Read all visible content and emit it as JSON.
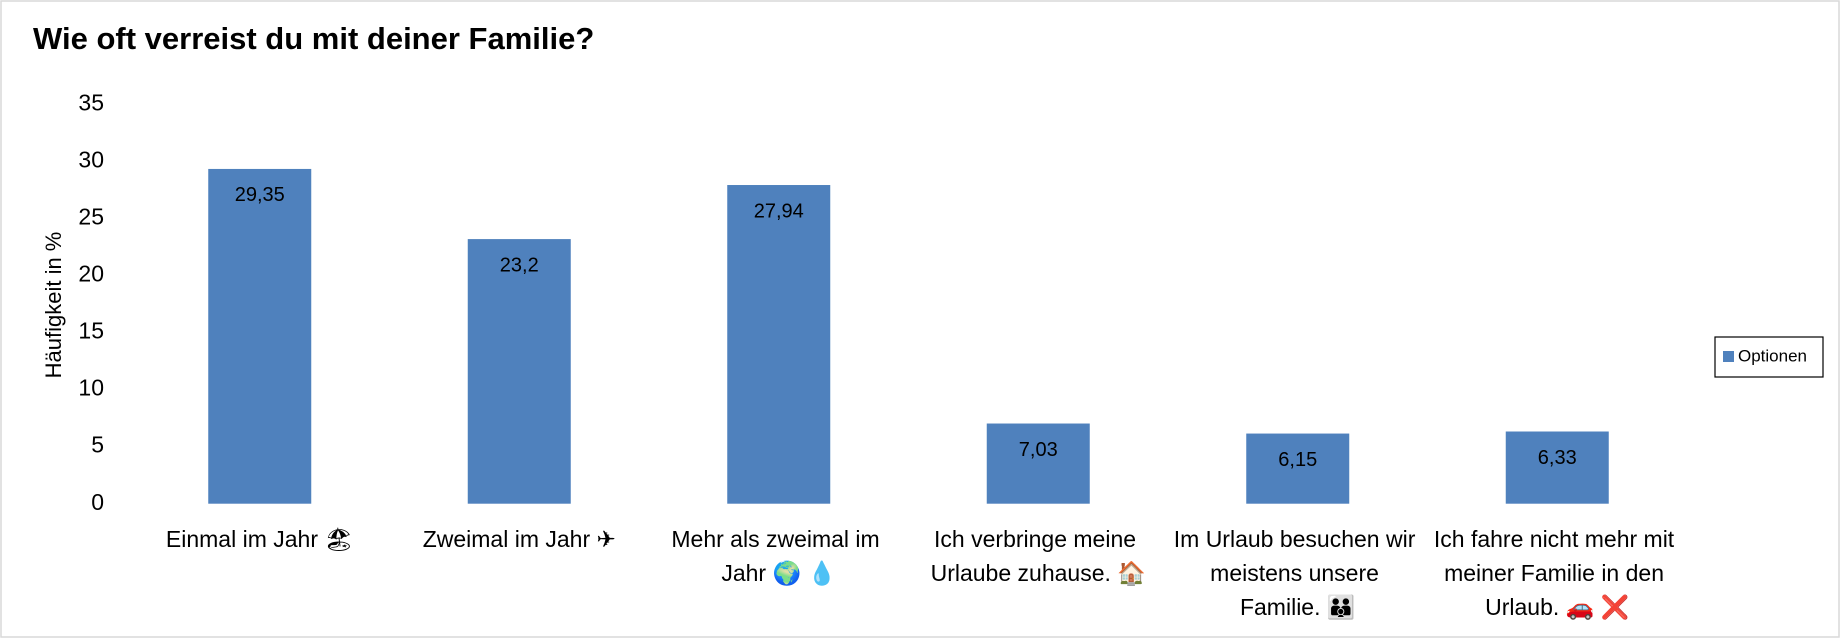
{
  "chart_data": {
    "type": "bar",
    "title": "Wie oft verreist du mit deiner Familie?",
    "y_label": "Häufigkeit in %",
    "categories": [
      "Einmal im Jahr 🏖",
      "Zweimal im Jahr ✈",
      "Mehr als zweimal im Jahr 🌍 💧",
      "Ich verbringe meine Urlaube zuhause. 🏠",
      "Im Urlaub besuchen wir meistens unsere Familie. 👪",
      "Ich fahre nicht mehr mit meiner Familie in den Urlaub. 🚗 ❌"
    ],
    "series": [
      {
        "name": "Optionen",
        "color": "#4f81bd",
        "values": [
          29.35,
          23.2,
          27.94,
          7.03,
          6.15,
          6.33
        ],
        "value_labels": [
          "29,35",
          "23,2",
          "27,94",
          "7,03",
          "6,15",
          "6,33"
        ]
      }
    ],
    "ylim": [
      0,
      35
    ],
    "yticks": [
      0,
      5,
      10,
      15,
      20,
      25,
      30,
      35
    ],
    "grid": false,
    "legend": "right"
  }
}
